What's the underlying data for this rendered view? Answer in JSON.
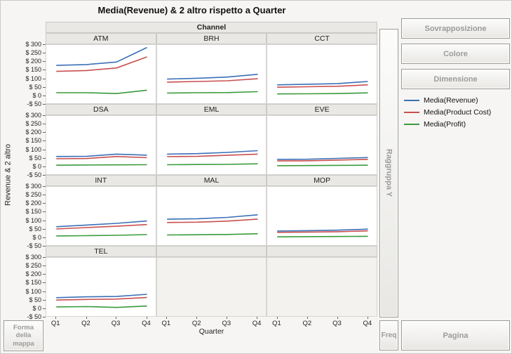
{
  "title": "Media(Revenue) & 2 altro rispetto a Quarter",
  "channel_header": "Channel",
  "ylabel": "Revenue & 2 altro",
  "xlabel": "Quarter",
  "y_ticks": [
    "$ 300",
    "$ 250",
    "$ 200",
    "$ 150",
    "$ 100",
    "$ 50",
    "$ 0",
    "-$ 50"
  ],
  "x_ticks": [
    "Q1",
    "Q2",
    "Q3",
    "Q4"
  ],
  "controls": {
    "overlay": "Sovrapposizione",
    "color": "Colore",
    "size": "Dimensione",
    "group_y": "Raggruppa Y",
    "freq": "Freq",
    "page": "Pagina",
    "map_shape": "Forma della mappa"
  },
  "legend": [
    {
      "label": "Media(Revenue)",
      "color": "#3b6fb6"
    },
    {
      "label": "Media(Product Cost)",
      "color": "#c94f4f"
    },
    {
      "label": "Media(Profit)",
      "color": "#3a9a3c"
    }
  ],
  "chart_data": {
    "type": "line",
    "title": "Media(Revenue) & 2 altro rispetto a Quarter",
    "facet_by": "Channel",
    "x": [
      "Q1",
      "Q2",
      "Q3",
      "Q4"
    ],
    "xlabel": "Quarter",
    "ylabel": "Revenue & 2 altro",
    "ylim": [
      -50,
      300
    ],
    "y_tick_step": 50,
    "grid_cols": 3,
    "series_keys": [
      "revenue",
      "product_cost",
      "profit"
    ],
    "series_names": [
      "Media(Revenue)",
      "Media(Product Cost)",
      "Media(Profit)"
    ],
    "series_colors": [
      "#3b6fb6",
      "#c94f4f",
      "#3a9a3c"
    ],
    "facets": [
      {
        "name": "ATM",
        "series": {
          "revenue": [
            180,
            185,
            200,
            285
          ],
          "product_cost": [
            145,
            150,
            165,
            230
          ],
          "profit": [
            20,
            20,
            15,
            35
          ]
        }
      },
      {
        "name": "BRH",
        "series": {
          "revenue": [
            100,
            105,
            112,
            128
          ],
          "product_cost": [
            82,
            86,
            90,
            102
          ],
          "profit": [
            18,
            20,
            21,
            26
          ]
        }
      },
      {
        "name": "CCT",
        "series": {
          "revenue": [
            66,
            70,
            73,
            86
          ],
          "product_cost": [
            52,
            55,
            58,
            66
          ],
          "profit": [
            13,
            14,
            15,
            19
          ]
        }
      },
      {
        "name": "DSA",
        "series": {
          "revenue": [
            62,
            63,
            76,
            70
          ],
          "product_cost": [
            49,
            50,
            62,
            55
          ],
          "profit": [
            11,
            12,
            13,
            14
          ]
        }
      },
      {
        "name": "EML",
        "series": {
          "revenue": [
            76,
            79,
            86,
            96
          ],
          "product_cost": [
            61,
            63,
            69,
            76
          ],
          "profit": [
            14,
            15,
            16,
            19
          ]
        }
      },
      {
        "name": "EVE",
        "series": {
          "revenue": [
            45,
            46,
            51,
            56
          ],
          "product_cost": [
            36,
            37,
            41,
            45
          ],
          "profit": [
            8,
            9,
            10,
            11
          ]
        }
      },
      {
        "name": "INT",
        "series": {
          "revenue": [
            66,
            76,
            86,
            100
          ],
          "product_cost": [
            53,
            61,
            69,
            79
          ],
          "profit": [
            12,
            14,
            16,
            20
          ]
        }
      },
      {
        "name": "MAL",
        "series": {
          "revenue": [
            110,
            113,
            121,
            136
          ],
          "product_cost": [
            91,
            93,
            99,
            111
          ],
          "profit": [
            18,
            19,
            21,
            25
          ]
        }
      },
      {
        "name": "MOP",
        "series": {
          "revenue": [
            41,
            43,
            46,
            52
          ],
          "product_cost": [
            33,
            35,
            37,
            42
          ],
          "profit": [
            7,
            8,
            9,
            10
          ]
        }
      },
      {
        "name": "TEL",
        "series": {
          "revenue": [
            66,
            71,
            73,
            86
          ],
          "product_cost": [
            52,
            56,
            58,
            67
          ],
          "profit": [
            12,
            14,
            9,
            17
          ]
        }
      },
      null,
      null
    ]
  }
}
